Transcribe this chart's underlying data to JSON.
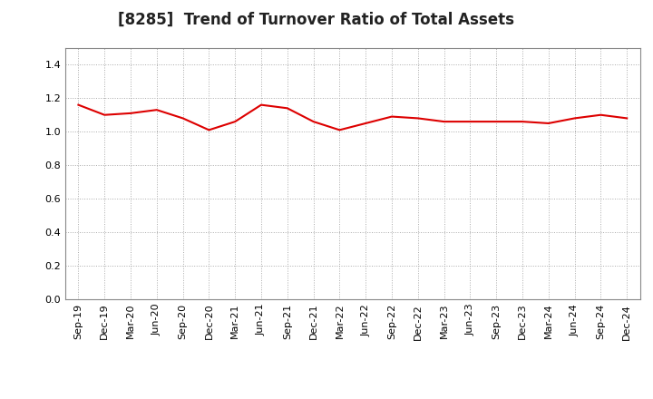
{
  "title": "[8285]  Trend of Turnover Ratio of Total Assets",
  "x_labels": [
    "Sep-19",
    "Dec-19",
    "Mar-20",
    "Jun-20",
    "Sep-20",
    "Dec-20",
    "Mar-21",
    "Jun-21",
    "Sep-21",
    "Dec-21",
    "Mar-22",
    "Jun-22",
    "Sep-22",
    "Dec-22",
    "Mar-23",
    "Jun-23",
    "Sep-23",
    "Dec-23",
    "Mar-24",
    "Jun-24",
    "Sep-24",
    "Dec-24"
  ],
  "y_values": [
    1.16,
    1.1,
    1.11,
    1.13,
    1.08,
    1.01,
    1.06,
    1.16,
    1.14,
    1.06,
    1.01,
    1.05,
    1.09,
    1.08,
    1.06,
    1.06,
    1.06,
    1.06,
    1.05,
    1.08,
    1.1,
    1.08
  ],
  "line_color": "#dd0000",
  "line_width": 1.5,
  "ylim": [
    0.0,
    1.5
  ],
  "yticks": [
    0.0,
    0.2,
    0.4,
    0.6,
    0.8,
    1.0,
    1.2,
    1.4
  ],
  "background_color": "#ffffff",
  "grid_color": "#aaaaaa",
  "title_fontsize": 12,
  "tick_fontsize": 8,
  "label_rotation": 90
}
